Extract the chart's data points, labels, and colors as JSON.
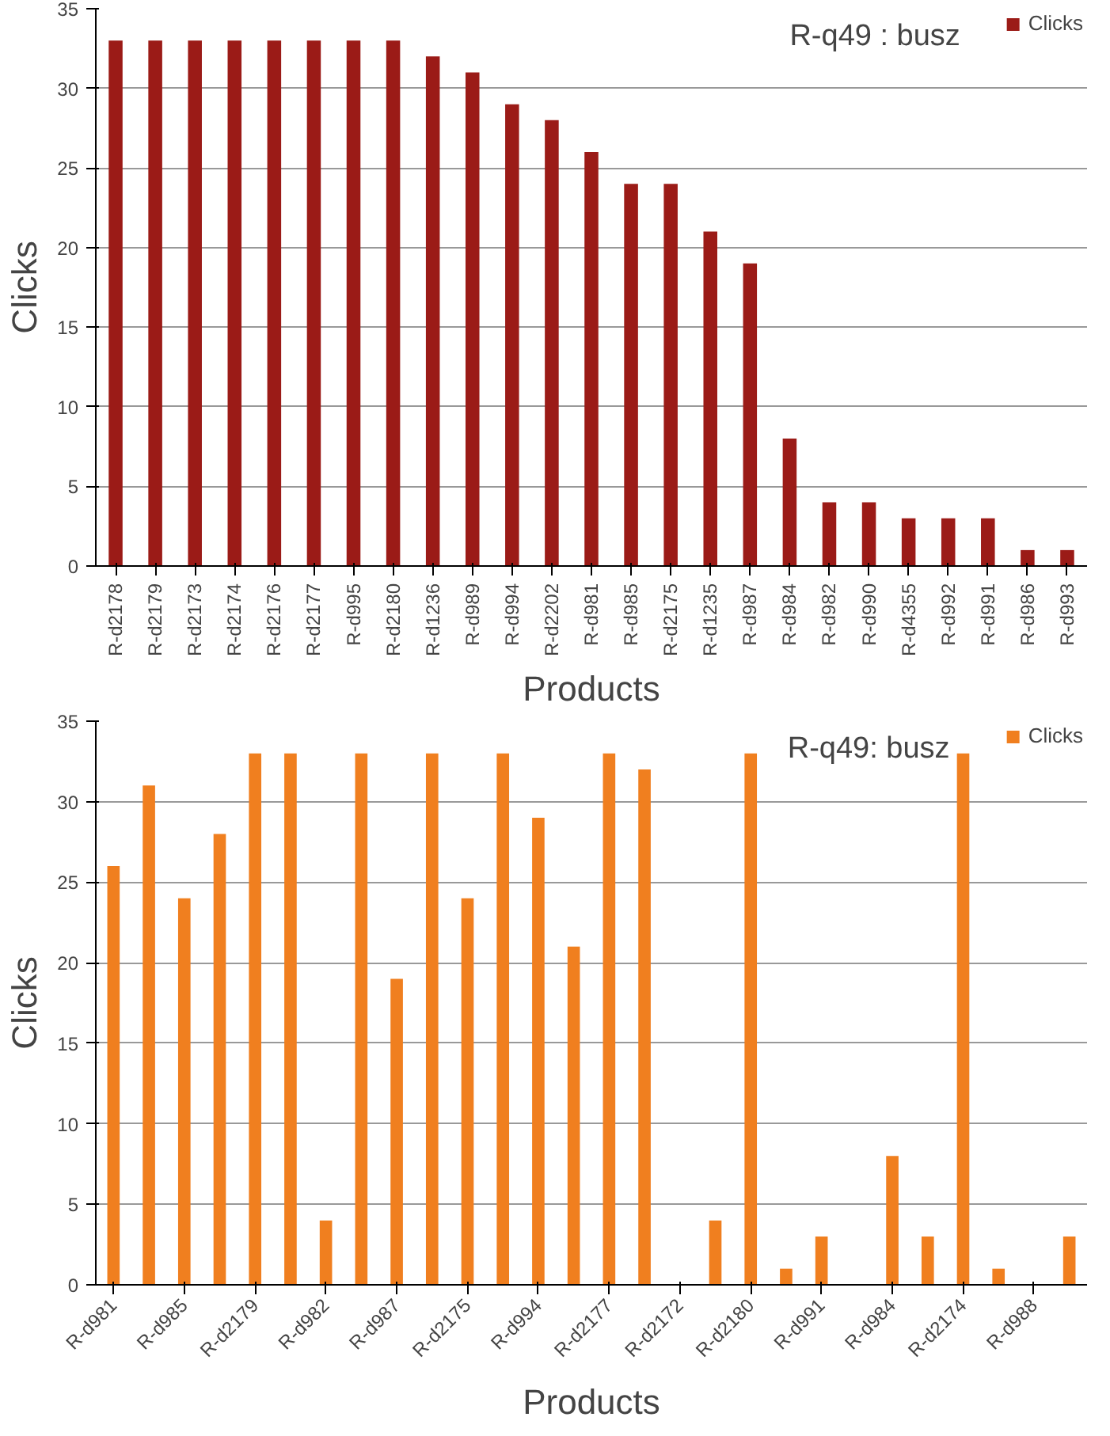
{
  "chart_data": [
    {
      "type": "bar",
      "title": "R-q49 : busz",
      "xlabel": "Products",
      "ylabel": "Clicks",
      "categories": [
        "R-d2178",
        "R-d2179",
        "R-d2173",
        "R-d2174",
        "R-d2176",
        "R-d2177",
        "R-d995",
        "R-d2180",
        "R-d1236",
        "R-d989",
        "R-d994",
        "R-d2202",
        "R-d981",
        "R-d985",
        "R-d2175",
        "R-d1235",
        "R-d987",
        "R-d984",
        "R-d982",
        "R-d990",
        "R-d4355",
        "R-d992",
        "R-d991",
        "R-d986",
        "R-d993"
      ],
      "series": [
        {
          "name": "Clicks",
          "color": "#9b1b17",
          "values": [
            33,
            33,
            33,
            33,
            33,
            33,
            33,
            33,
            32,
            31,
            29,
            28,
            26,
            24,
            24,
            21,
            19,
            8,
            4,
            4,
            3,
            3,
            3,
            1,
            1
          ]
        }
      ],
      "ylim": [
        0,
        35
      ],
      "yticks": [
        0,
        5,
        10,
        15,
        20,
        25,
        30,
        35
      ],
      "grid": "y",
      "legend": "top right"
    },
    {
      "type": "bar",
      "title": "R-q49: busz",
      "xlabel": "Products",
      "ylabel": "Clicks",
      "categories": [
        "R-d981",
        null,
        "R-d985",
        null,
        "R-d2179",
        null,
        "R-d982",
        null,
        "R-d987",
        null,
        "R-d2175",
        null,
        "R-d994",
        null,
        "R-d2177",
        null,
        "R-d2172",
        null,
        "R-d2180",
        null,
        "R-d991",
        null,
        "R-d984",
        null,
        "R-d2174",
        null,
        "R-d988",
        null
      ],
      "series": [
        {
          "name": "Clicks",
          "color": "#f07f1f",
          "values": [
            26,
            31,
            24,
            28,
            33,
            33,
            4,
            33,
            19,
            33,
            24,
            33,
            29,
            21,
            33,
            32,
            0,
            4,
            33,
            1,
            3,
            0,
            8,
            3,
            33,
            1,
            0,
            3
          ]
        }
      ],
      "ylim": [
        0,
        35
      ],
      "yticks": [
        0,
        5,
        10,
        15,
        20,
        25,
        30,
        35
      ],
      "grid": "y",
      "legend": "top right"
    }
  ]
}
